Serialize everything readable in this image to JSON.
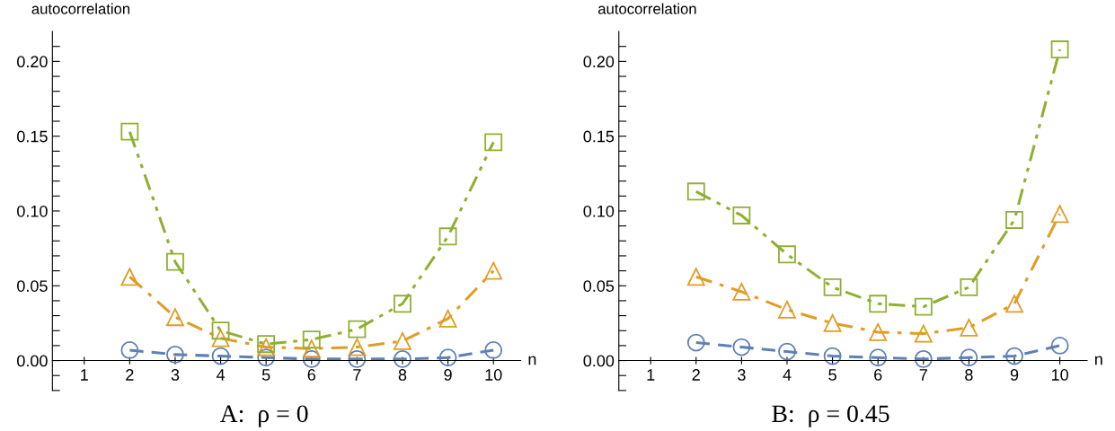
{
  "chart_data": [
    {
      "type": "line",
      "title": "A:  ρ = 0",
      "xlabel": "n",
      "ylabel": "autocorrelation",
      "x": [
        2,
        3,
        4,
        5,
        6,
        7,
        8,
        9,
        10
      ],
      "xlim": [
        0.3,
        10.6
      ],
      "ylim": [
        -0.02,
        0.22
      ],
      "xticks": [
        1,
        2,
        3,
        4,
        5,
        6,
        7,
        8,
        9,
        10
      ],
      "yticks": [
        {
          "value": -0.02,
          "label": null
        },
        {
          "value": -0.01,
          "label": null
        },
        {
          "value": 0.0,
          "label": "0.00"
        },
        {
          "value": 0.01,
          "label": null
        },
        {
          "value": 0.02,
          "label": null
        },
        {
          "value": 0.03,
          "label": null
        },
        {
          "value": 0.04,
          "label": null
        },
        {
          "value": 0.05,
          "label": "0.05"
        },
        {
          "value": 0.06,
          "label": null
        },
        {
          "value": 0.07,
          "label": null
        },
        {
          "value": 0.08,
          "label": null
        },
        {
          "value": 0.09,
          "label": null
        },
        {
          "value": 0.1,
          "label": "0.10"
        },
        {
          "value": 0.11,
          "label": null
        },
        {
          "value": 0.12,
          "label": null
        },
        {
          "value": 0.13,
          "label": null
        },
        {
          "value": 0.14,
          "label": null
        },
        {
          "value": 0.15,
          "label": "0.15"
        },
        {
          "value": 0.16,
          "label": null
        },
        {
          "value": 0.17,
          "label": null
        },
        {
          "value": 0.18,
          "label": null
        },
        {
          "value": 0.19,
          "label": null
        },
        {
          "value": 0.2,
          "label": "0.20"
        },
        {
          "value": 0.21,
          "label": null
        }
      ],
      "grid": false,
      "legend": false,
      "series": [
        {
          "color": "#5e81b5",
          "marker": "circle",
          "line_style": "dashed",
          "values": [
            0.007,
            0.004,
            0.003,
            0.002,
            0.001,
            0.001,
            0.001,
            0.002,
            0.007
          ]
        },
        {
          "color": "#e19c24",
          "marker": "triangle",
          "line_style": "dashdot",
          "values": [
            0.056,
            0.029,
            0.015,
            0.009,
            0.008,
            0.009,
            0.013,
            0.028,
            0.06
          ]
        },
        {
          "color": "#8fb032",
          "marker": "square",
          "line_style": "dashdotdot",
          "values": [
            0.153,
            0.066,
            0.02,
            0.011,
            0.014,
            0.021,
            0.038,
            0.083,
            0.146
          ]
        }
      ]
    },
    {
      "type": "line",
      "title": "B:  ρ = 0.45",
      "xlabel": "n",
      "ylabel": "autocorrelation",
      "x": [
        2,
        3,
        4,
        5,
        6,
        7,
        8,
        9,
        10
      ],
      "xlim": [
        0.3,
        10.6
      ],
      "ylim": [
        -0.02,
        0.22
      ],
      "xticks": [
        1,
        2,
        3,
        4,
        5,
        6,
        7,
        8,
        9,
        10
      ],
      "yticks": [
        {
          "value": -0.02,
          "label": null
        },
        {
          "value": -0.01,
          "label": null
        },
        {
          "value": 0.0,
          "label": "0.00"
        },
        {
          "value": 0.01,
          "label": null
        },
        {
          "value": 0.02,
          "label": null
        },
        {
          "value": 0.03,
          "label": null
        },
        {
          "value": 0.04,
          "label": null
        },
        {
          "value": 0.05,
          "label": "0.05"
        },
        {
          "value": 0.06,
          "label": null
        },
        {
          "value": 0.07,
          "label": null
        },
        {
          "value": 0.08,
          "label": null
        },
        {
          "value": 0.09,
          "label": null
        },
        {
          "value": 0.1,
          "label": "0.10"
        },
        {
          "value": 0.11,
          "label": null
        },
        {
          "value": 0.12,
          "label": null
        },
        {
          "value": 0.13,
          "label": null
        },
        {
          "value": 0.14,
          "label": null
        },
        {
          "value": 0.15,
          "label": "0.15"
        },
        {
          "value": 0.16,
          "label": null
        },
        {
          "value": 0.17,
          "label": null
        },
        {
          "value": 0.18,
          "label": null
        },
        {
          "value": 0.19,
          "label": null
        },
        {
          "value": 0.2,
          "label": "0.20"
        },
        {
          "value": 0.21,
          "label": null
        }
      ],
      "grid": false,
      "legend": false,
      "series": [
        {
          "color": "#5e81b5",
          "marker": "circle",
          "line_style": "dashed",
          "values": [
            0.012,
            0.009,
            0.006,
            0.003,
            0.002,
            0.001,
            0.002,
            0.003,
            0.01
          ]
        },
        {
          "color": "#e19c24",
          "marker": "triangle",
          "line_style": "dashdot",
          "values": [
            0.056,
            0.046,
            0.034,
            0.025,
            0.019,
            0.018,
            0.022,
            0.038,
            0.098
          ]
        },
        {
          "color": "#8fb032",
          "marker": "square",
          "line_style": "dashdotdot",
          "values": [
            0.113,
            0.097,
            0.071,
            0.049,
            0.038,
            0.036,
            0.049,
            0.094,
            0.208
          ]
        }
      ]
    }
  ]
}
